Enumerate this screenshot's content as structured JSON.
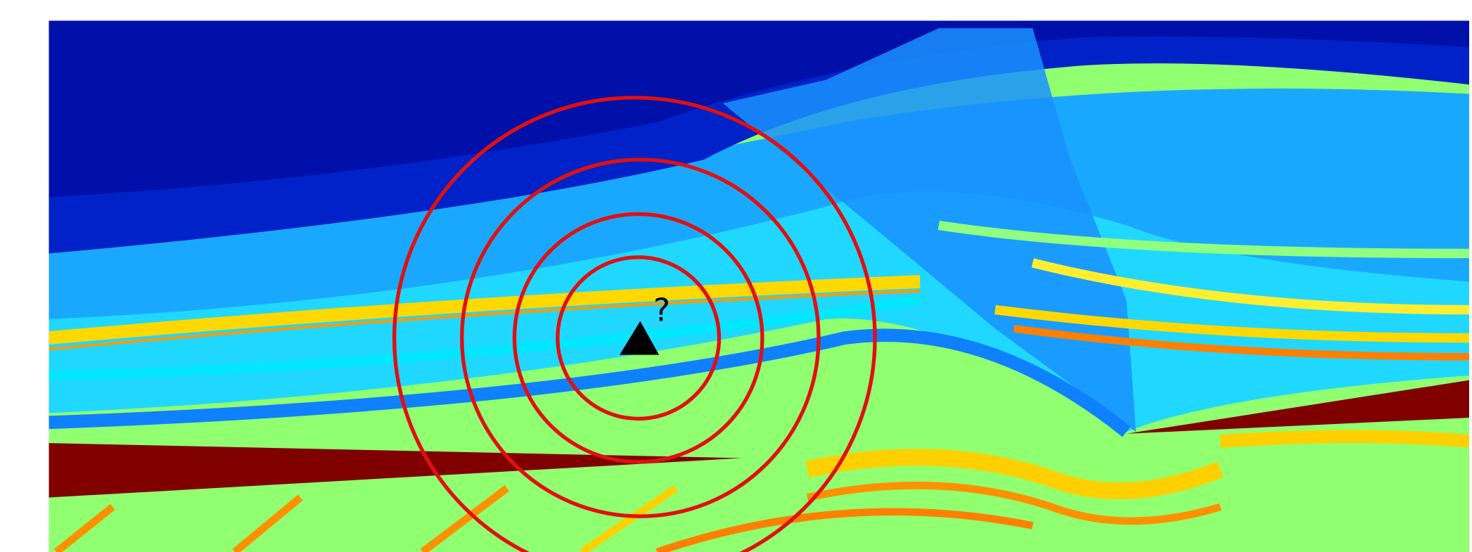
{
  "annotation": "?"
}
